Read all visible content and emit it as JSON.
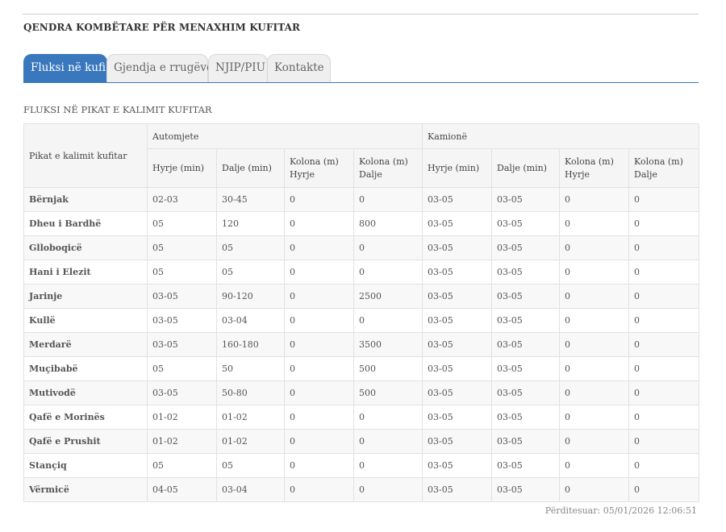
{
  "header": {
    "title": "QENDRA KOMBËTARE PËR MENAXHIM KUFITAR"
  },
  "tabs": [
    {
      "label": "Fluksi në kufi",
      "active": true
    },
    {
      "label": "Gjendja e rrugëve",
      "active": false
    },
    {
      "label": "NJIP/PIU",
      "active": false
    },
    {
      "label": "Kontakte",
      "active": false
    }
  ],
  "section": {
    "title": "FLUKSI NË PIKAT E KALIMIT KUFITAR"
  },
  "table": {
    "corner_header": "Pikat e kalimit kufitar",
    "group_headers": [
      "Automjete",
      "Kamionë"
    ],
    "sub_headers": [
      {
        "line1": "Hyrje (min)",
        "line2": ""
      },
      {
        "line1": "Dalje (min)",
        "line2": ""
      },
      {
        "line1": "Kolona (m)",
        "line2": "Hyrje"
      },
      {
        "line1": "Kolona (m)",
        "line2": "Dalje"
      },
      {
        "line1": "Hyrje (min)",
        "line2": ""
      },
      {
        "line1": "Dalje (min)",
        "line2": ""
      },
      {
        "line1": "Kolona (m)",
        "line2": "Hyrje"
      },
      {
        "line1": "Kolona (m)",
        "line2": "Dalje"
      }
    ],
    "rows": [
      {
        "name": "Bërnjak",
        "cells": [
          "02-03",
          "30-45",
          "0",
          "0",
          "03-05",
          "03-05",
          "0",
          "0"
        ]
      },
      {
        "name": "Dheu i Bardhë",
        "cells": [
          "05",
          "120",
          "0",
          "800",
          "03-05",
          "03-05",
          "0",
          "0"
        ]
      },
      {
        "name": "Glloboqicë",
        "cells": [
          "05",
          "05",
          "0",
          "0",
          "03-05",
          "03-05",
          "0",
          "0"
        ]
      },
      {
        "name": "Hani i Elezit",
        "cells": [
          "05",
          "05",
          "0",
          "0",
          "03-05",
          "03-05",
          "0",
          "0"
        ]
      },
      {
        "name": "Jarinje",
        "cells": [
          "03-05",
          "90-120",
          "0",
          "2500",
          "03-05",
          "03-05",
          "0",
          "0"
        ]
      },
      {
        "name": "Kullë",
        "cells": [
          "03-05",
          "03-04",
          "0",
          "0",
          "03-05",
          "03-05",
          "0",
          "0"
        ]
      },
      {
        "name": "Merdarë",
        "cells": [
          "03-05",
          "160-180",
          "0",
          "3500",
          "03-05",
          "03-05",
          "0",
          "0"
        ]
      },
      {
        "name": "Muçibabë",
        "cells": [
          "05",
          "50",
          "0",
          "500",
          "03-05",
          "03-05",
          "0",
          "0"
        ]
      },
      {
        "name": "Mutivodë",
        "cells": [
          "03-05",
          "50-80",
          "0",
          "500",
          "03-05",
          "03-05",
          "0",
          "0"
        ]
      },
      {
        "name": "Qafë e Morinës",
        "cells": [
          "01-02",
          "01-02",
          "0",
          "0",
          "03-05",
          "03-05",
          "0",
          "0"
        ]
      },
      {
        "name": "Qafë e Prushit",
        "cells": [
          "01-02",
          "01-02",
          "0",
          "0",
          "03-05",
          "03-05",
          "0",
          "0"
        ]
      },
      {
        "name": "Stançiq",
        "cells": [
          "05",
          "05",
          "0",
          "0",
          "03-05",
          "03-05",
          "0",
          "0"
        ]
      },
      {
        "name": "Vërmicë",
        "cells": [
          "04-05",
          "03-04",
          "0",
          "0",
          "03-05",
          "03-05",
          "0",
          "0"
        ]
      }
    ]
  },
  "footer": {
    "updated": "Përditesuar: 05/01/2026 12:06:51"
  },
  "colors": {
    "accent": "#3a78bd",
    "tab_inactive": "#efefef",
    "header_bg": "#f5f5f5"
  }
}
